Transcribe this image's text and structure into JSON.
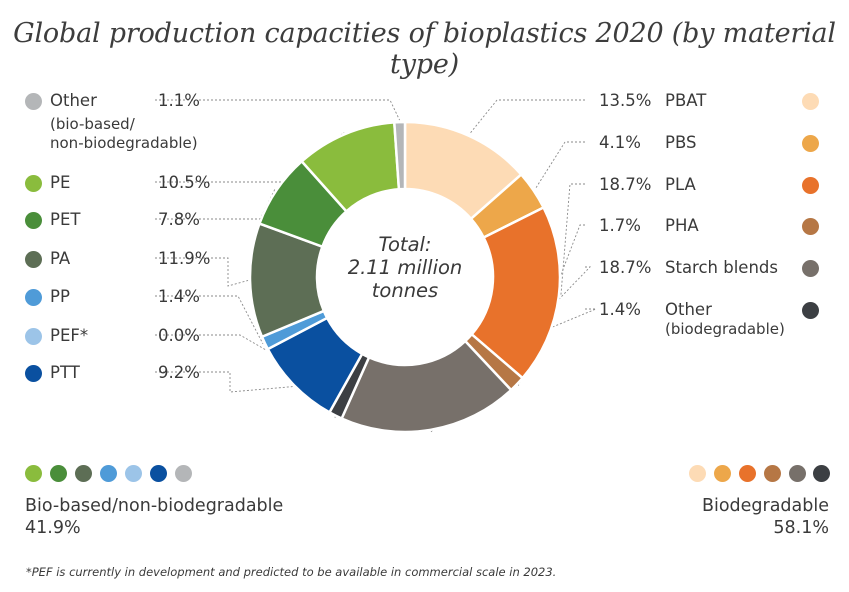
{
  "title": "Global production capacities of bioplastics 2020 (by material type)",
  "center_label": {
    "line1": "Total:",
    "line2": "2.11 million",
    "line3": "tonnes"
  },
  "chart_data": {
    "type": "pie",
    "donut": true,
    "title": "Global production capacities of bioplastics 2020 (by material type)",
    "total": "2.11 million tonnes",
    "unit": "%",
    "slices": [
      {
        "name": "PBAT",
        "value": 13.5,
        "display": "13.5%",
        "color": "#fddbb5",
        "group": "biodegradable"
      },
      {
        "name": "PBS",
        "value": 4.1,
        "display": "4.1%",
        "color": "#eda74a",
        "group": "biodegradable"
      },
      {
        "name": "PLA",
        "value": 18.7,
        "display": "18.7%",
        "color": "#e8722b",
        "group": "biodegradable"
      },
      {
        "name": "PHA",
        "value": 1.7,
        "display": "1.7%",
        "color": "#b67745",
        "group": "biodegradable"
      },
      {
        "name": "Starch blends",
        "value": 18.7,
        "display": "18.7%",
        "color": "#77706a",
        "group": "biodegradable"
      },
      {
        "name": "Other",
        "name_sub": "(biodegradable)",
        "value": 1.4,
        "display": "1.4%",
        "color": "#3c3f43",
        "group": "biodegradable"
      },
      {
        "name": "PTT",
        "value": 9.2,
        "display": "9.2%",
        "color": "#0a50a0",
        "group": "bio-based"
      },
      {
        "name": "PEF*",
        "value": 0.0,
        "display": "0.0%",
        "color": "#9cc4e8",
        "group": "bio-based"
      },
      {
        "name": "PP",
        "value": 1.4,
        "display": "1.4%",
        "color": "#4f9bd8",
        "group": "bio-based"
      },
      {
        "name": "PA",
        "value": 11.9,
        "display": "11.9%",
        "color": "#5d6e55",
        "group": "bio-based"
      },
      {
        "name": "PET",
        "value": 7.8,
        "display": "7.8%",
        "color": "#4a8e3a",
        "group": "bio-based"
      },
      {
        "name": "PE",
        "value": 10.5,
        "display": "10.5%",
        "color": "#8abc3d",
        "group": "bio-based"
      },
      {
        "name": "Other",
        "name_sub_1": "(bio-based/",
        "name_sub_2": "non-biodegradable)",
        "value": 1.1,
        "display": "1.1%",
        "color": "#b4b6b8",
        "group": "bio-based"
      }
    ],
    "groups": {
      "bio_based": {
        "label": "Bio-based/non-biodegradable",
        "value": "41.9%"
      },
      "biodegradable": {
        "label": "Biodegradable",
        "value": "58.1%"
      }
    }
  },
  "footnote": "*PEF is currently in development and predicted to be available in commercial scale in 2023."
}
